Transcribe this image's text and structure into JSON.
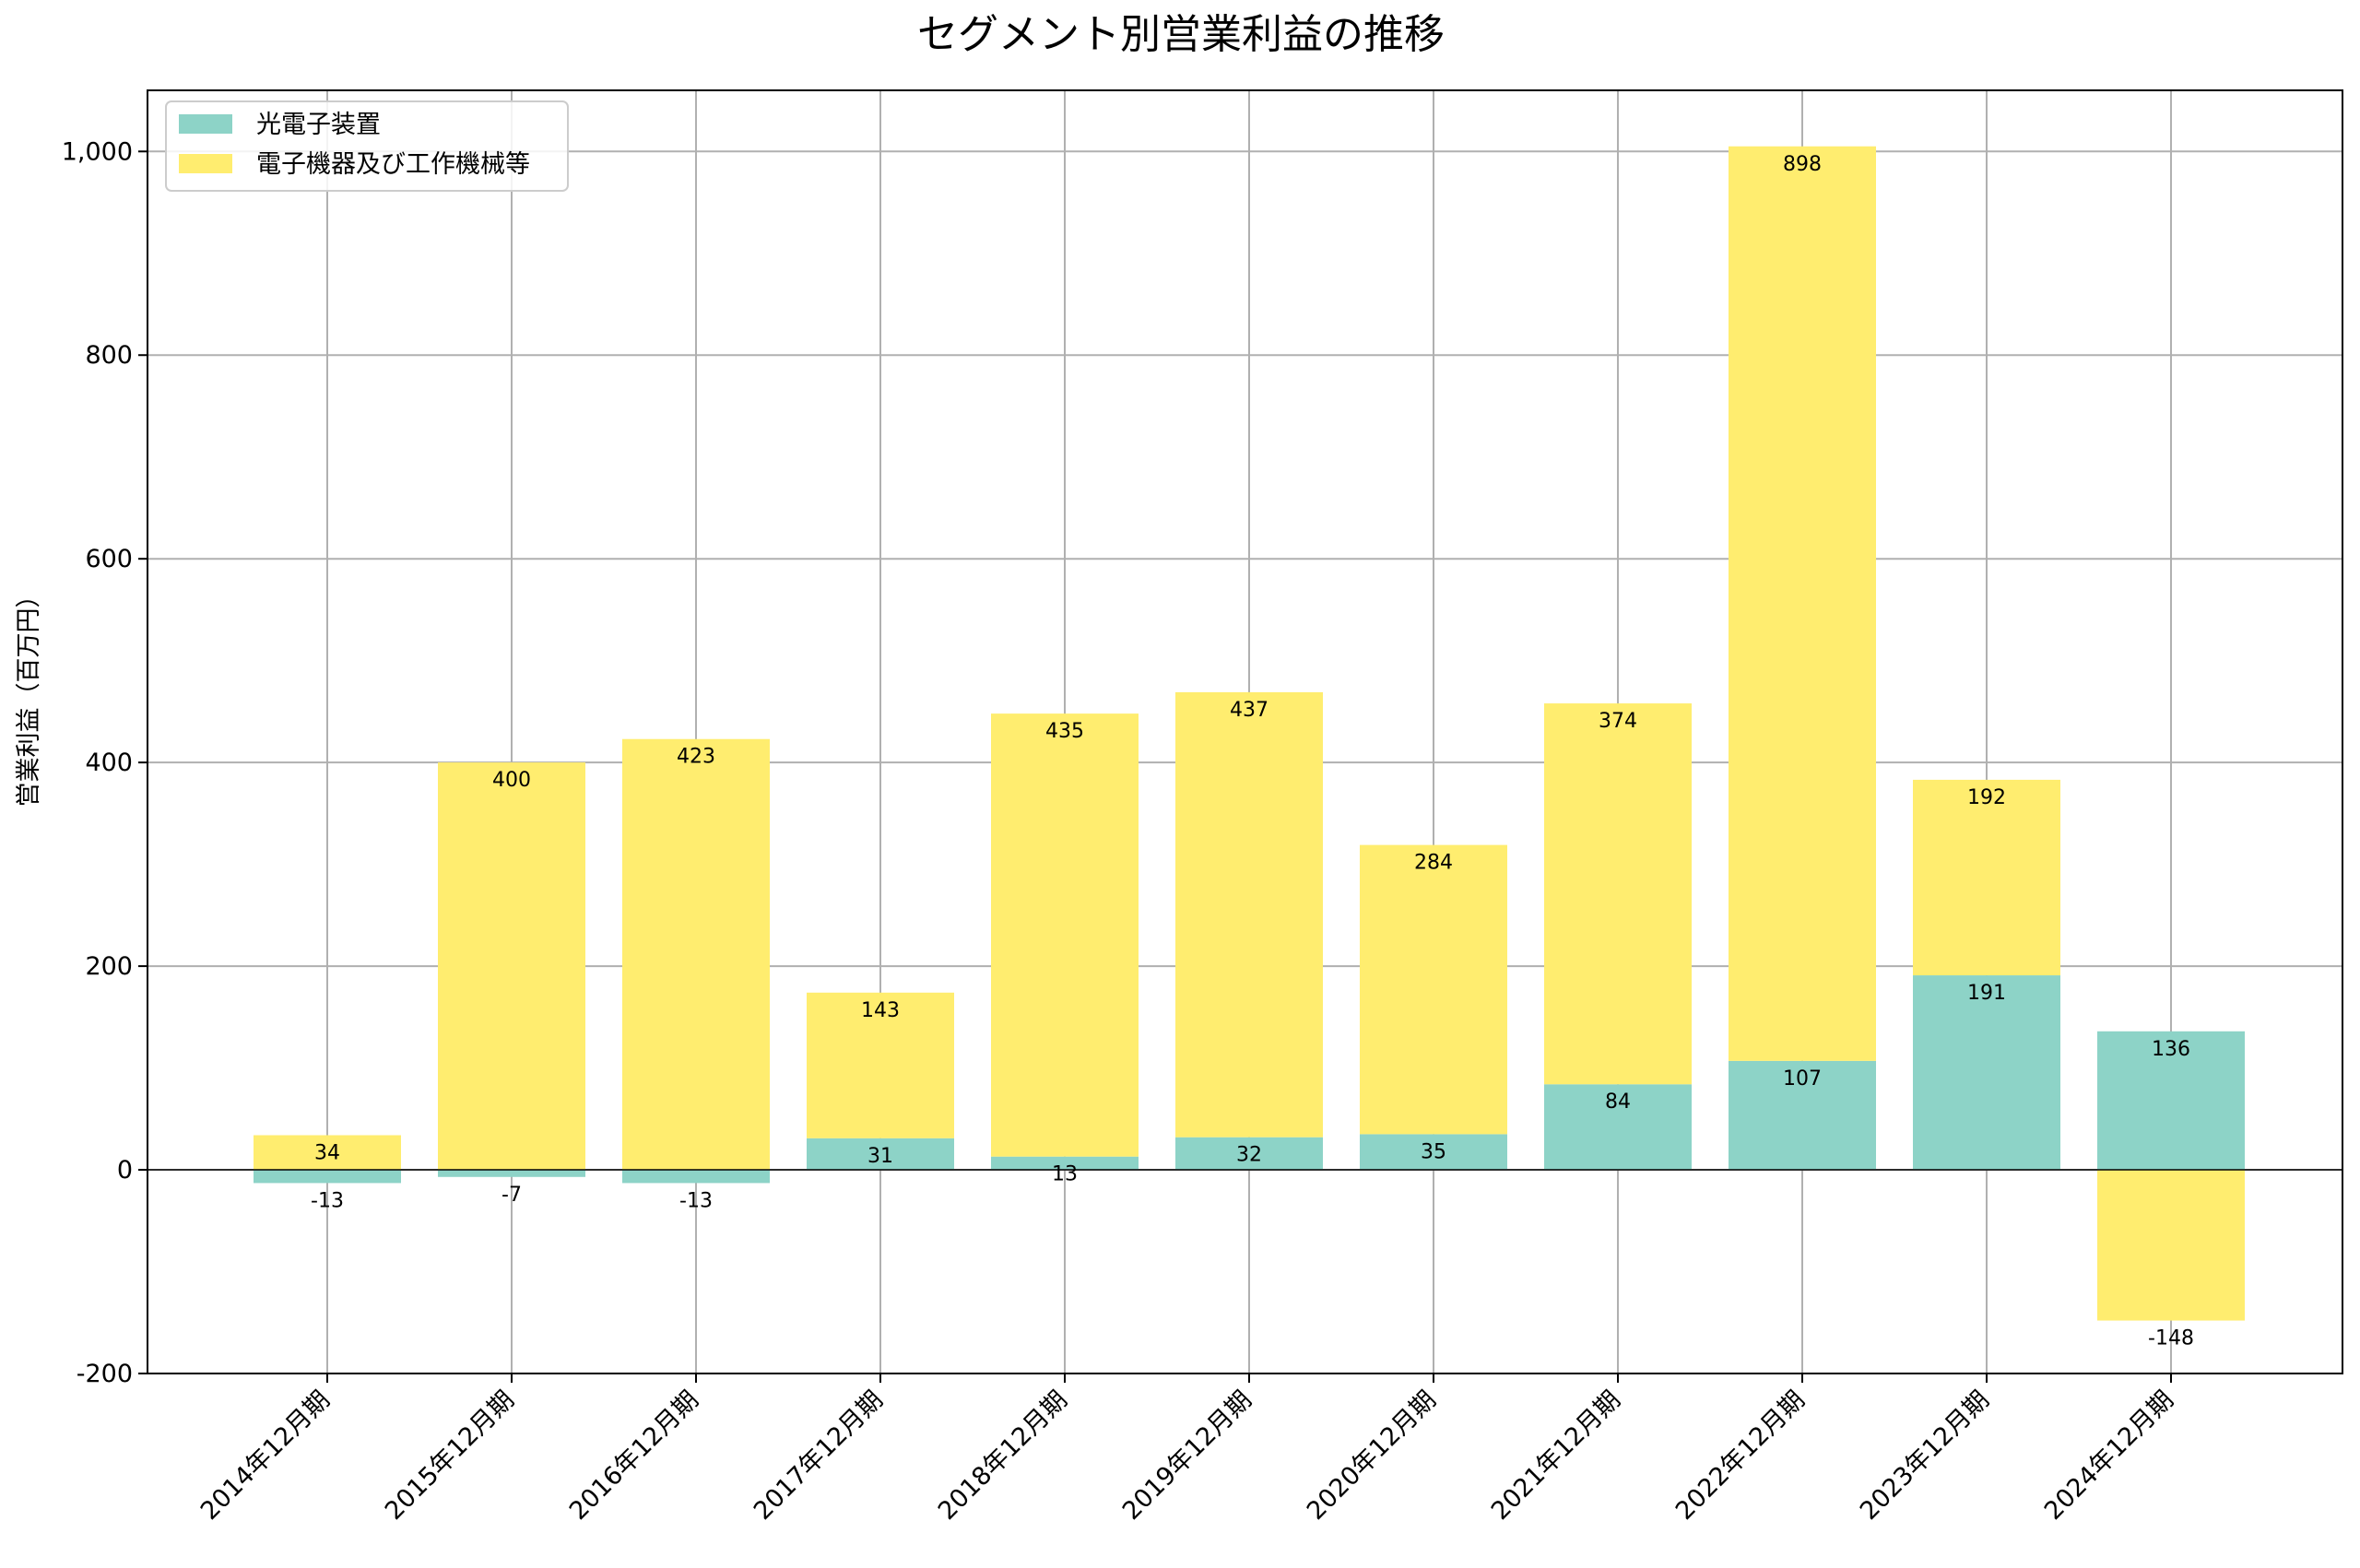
{
  "chart_data": {
    "type": "bar",
    "stacked": true,
    "title": "セグメント別営業利益の推移",
    "xlabel": "",
    "ylabel": "営業利益（百万円）",
    "categories": [
      "2014年12月期",
      "2015年12月期",
      "2016年12月期",
      "2017年12月期",
      "2018年12月期",
      "2019年12月期",
      "2020年12月期",
      "2021年12月期",
      "2022年12月期",
      "2023年12月期",
      "2024年12月期"
    ],
    "series": [
      {
        "name": "光電子装置",
        "color": "#8dd3c7",
        "values": [
          -13,
          -7,
          -13,
          31,
          13,
          32,
          35,
          84,
          107,
          191,
          136
        ]
      },
      {
        "name": "電子機器及び工作機械等",
        "color": "#ffed6f",
        "values": [
          34,
          400,
          423,
          143,
          435,
          437,
          284,
          374,
          898,
          192,
          -148
        ]
      }
    ],
    "ylim": [
      -200,
      1060
    ],
    "yticks": [
      -200,
      0,
      200,
      400,
      600,
      800,
      1000
    ],
    "ytick_labels": [
      "-200",
      "0",
      "200",
      "400",
      "600",
      "800",
      "1,000"
    ],
    "grid": true,
    "legend_position": "top-left",
    "zero_line": true
  }
}
